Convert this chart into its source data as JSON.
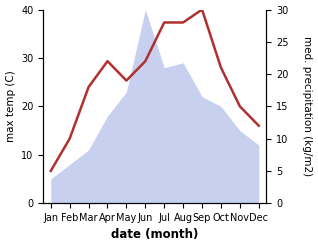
{
  "months": [
    "Jan",
    "Feb",
    "Mar",
    "Apr",
    "May",
    "Jun",
    "Jul",
    "Aug",
    "Sep",
    "Oct",
    "Nov",
    "Dec"
  ],
  "precipitation": [
    5,
    8,
    11,
    18,
    23,
    40,
    28,
    29,
    22,
    20,
    15,
    12
  ],
  "temperature": [
    5,
    10,
    18,
    22,
    19,
    22,
    28,
    28,
    30,
    21,
    15,
    12
  ],
  "temp_color": "#b03030",
  "precip_fill_color": "#c8d0f0",
  "precip_edge_color": "#c8d0f0",
  "background_color": "#ffffff",
  "xlabel": "date (month)",
  "ylabel_left": "max temp (C)",
  "ylabel_right": "med. precipitation (kg/m2)",
  "ylim_left": [
    0,
    40
  ],
  "ylim_right": [
    0,
    30
  ],
  "yticks_left": [
    0,
    10,
    20,
    30,
    40
  ],
  "yticks_right": [
    0,
    5,
    10,
    15,
    20,
    25,
    30
  ],
  "line_width": 1.8,
  "xlabel_fontsize": 8.5,
  "ylabel_fontsize": 7.5,
  "tick_fontsize": 7
}
